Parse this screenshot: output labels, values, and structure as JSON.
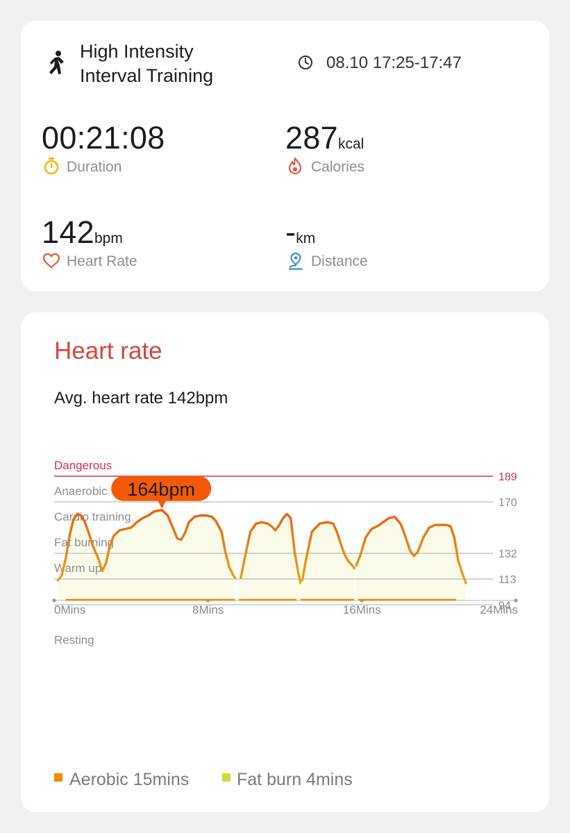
{
  "workout": {
    "title_line1": "High Intensity",
    "title_line2": "Interval Training",
    "time": "08.10 17:25-17:47",
    "icon": "running-person-icon"
  },
  "metrics": {
    "duration": {
      "value": "00:21:08",
      "label": "Duration",
      "icon": "stopwatch-icon",
      "color": "#f2b705"
    },
    "calories": {
      "value": "287",
      "unit": "kcal",
      "label": "Calories",
      "icon": "flame-icon",
      "color": "#e8553e"
    },
    "heart_rate": {
      "value": "142",
      "unit": "bpm",
      "label": "Heart Rate",
      "icon": "heart-icon",
      "color": "#e8553e"
    },
    "distance": {
      "value": "-",
      "unit": "km",
      "label": "Distance",
      "icon": "location-pin-icon",
      "color": "#3d8fe0"
    }
  },
  "heart_card": {
    "title": "Heart rate",
    "avg_text": "Avg. heart rate 142bpm"
  },
  "chart_data": {
    "type": "line",
    "title": "",
    "x_unit": "Mins",
    "xlim": [
      0,
      24
    ],
    "x_ticks": [
      "0Mins",
      "8Mins",
      "16Mins",
      "24Mins"
    ],
    "ylim": [
      20,
      189
    ],
    "zones": [
      {
        "name": "Dangerous",
        "threshold": 189
      },
      {
        "name": "Anaerobic",
        "threshold": 170
      },
      {
        "name": "Cardio training",
        "threshold": 151
      },
      {
        "name": "Fat burning",
        "threshold": 132
      },
      {
        "name": "Warm up",
        "threshold": 113
      },
      {
        "name": "Resting",
        "threshold": 94
      }
    ],
    "threshold_labels": [
      "189",
      "170",
      "132",
      "113",
      "94"
    ],
    "peak_label": "164bpm",
    "peak": {
      "x": 5.6,
      "y": 164
    },
    "segments": [
      [
        [
          0.2,
          112
        ],
        [
          0.4,
          116
        ],
        [
          0.6,
          128
        ],
        [
          0.8,
          145
        ],
        [
          1.0,
          157
        ],
        [
          1.2,
          161
        ],
        [
          1.4,
          160
        ],
        [
          1.6,
          155
        ],
        [
          1.8,
          147
        ],
        [
          2.0,
          138
        ],
        [
          2.3,
          128
        ],
        [
          2.5,
          119
        ],
        [
          2.7,
          125
        ],
        [
          2.9,
          138
        ],
        [
          3.1,
          145
        ],
        [
          3.4,
          149
        ],
        [
          3.7,
          150
        ],
        [
          4.0,
          151
        ],
        [
          4.3,
          155
        ],
        [
          4.6,
          158
        ],
        [
          4.9,
          160
        ],
        [
          5.2,
          163
        ],
        [
          5.6,
          164
        ],
        [
          5.9,
          160
        ],
        [
          6.2,
          150
        ],
        [
          6.4,
          143
        ],
        [
          6.6,
          142
        ],
        [
          6.8,
          147
        ],
        [
          7.0,
          155
        ],
        [
          7.3,
          159
        ],
        [
          7.6,
          160
        ],
        [
          7.9,
          160
        ],
        [
          8.2,
          159
        ],
        [
          8.4,
          156
        ],
        [
          8.7,
          148
        ],
        [
          8.9,
          133
        ],
        [
          9.1,
          122
        ],
        [
          9.3,
          116
        ],
        [
          9.4,
          114
        ]
      ],
      [
        [
          9.7,
          114
        ],
        [
          9.9,
          128
        ],
        [
          10.2,
          148
        ],
        [
          10.5,
          154
        ],
        [
          10.8,
          155
        ],
        [
          11.1,
          154
        ],
        [
          11.3,
          152
        ],
        [
          11.5,
          149
        ],
        [
          11.7,
          153
        ],
        [
          11.9,
          158
        ],
        [
          12.1,
          161
        ],
        [
          12.3,
          158
        ],
        [
          12.5,
          133
        ],
        [
          12.7,
          117
        ],
        [
          12.8,
          110
        ]
      ],
      [
        [
          12.9,
          112
        ],
        [
          13.1,
          128
        ],
        [
          13.4,
          148
        ],
        [
          13.8,
          154
        ],
        [
          14.2,
          155
        ],
        [
          14.5,
          154
        ],
        [
          14.7,
          148
        ],
        [
          14.9,
          139
        ],
        [
          15.1,
          131
        ],
        [
          15.3,
          126
        ],
        [
          15.5,
          123
        ],
        [
          15.6,
          121
        ]
      ],
      [
        [
          15.7,
          123
        ],
        [
          15.9,
          130
        ],
        [
          16.2,
          144
        ],
        [
          16.5,
          150
        ],
        [
          16.8,
          152
        ],
        [
          17.1,
          155
        ],
        [
          17.4,
          158
        ],
        [
          17.7,
          159
        ],
        [
          18.0,
          154
        ],
        [
          18.2,
          147
        ],
        [
          18.5,
          134
        ],
        [
          18.7,
          130
        ],
        [
          18.9,
          133
        ],
        [
          19.2,
          144
        ],
        [
          19.5,
          151
        ],
        [
          19.8,
          153
        ],
        [
          20.1,
          153
        ],
        [
          20.4,
          153
        ],
        [
          20.6,
          152
        ],
        [
          20.8,
          144
        ],
        [
          21.0,
          127
        ],
        [
          21.2,
          118
        ],
        [
          21.4,
          110
        ]
      ]
    ],
    "bands": [
      [
        0.6,
        9.4
      ],
      [
        9.6,
        12.6
      ],
      [
        12.8,
        15.6
      ],
      [
        15.8,
        20.9
      ]
    ],
    "legend": [
      {
        "name": "Aerobic 15mins",
        "color": "#f08a0c"
      },
      {
        "name": "Fat burn 4mins",
        "color": "#cfdc3a"
      }
    ],
    "line_color_high": "#ec5a0d",
    "line_color_low": "#e6b826",
    "fill_color": "#fbfbe9",
    "danger_color": "#c8325a",
    "grid": true
  }
}
